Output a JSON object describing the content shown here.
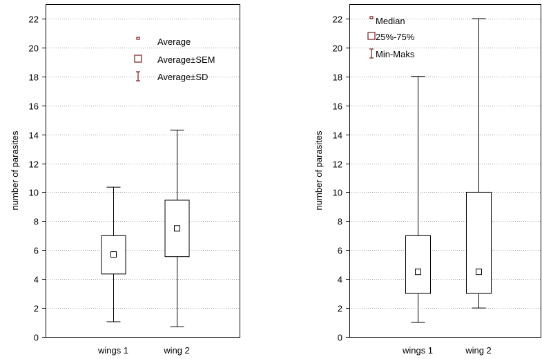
{
  "chart_data": [
    {
      "type": "box",
      "ylabel": "number of parasites",
      "ylim": [
        0,
        23
      ],
      "yticks": [
        0,
        2,
        4,
        6,
        8,
        10,
        12,
        14,
        16,
        18,
        20,
        22
      ],
      "categories": [
        "wings 1",
        "wing 2"
      ],
      "legend": {
        "placement": "top-right",
        "entries": [
          {
            "symbol": "point",
            "label": "Average"
          },
          {
            "symbol": "box",
            "label": "Average±SEM"
          },
          {
            "symbol": "whisker",
            "label": "Average±SD"
          }
        ]
      },
      "boxes": [
        {
          "category": "wings 1",
          "center": 5.7,
          "box_low": 4.35,
          "box_high": 7.0,
          "whisker_low": 1.05,
          "whisker_high": 10.35
        },
        {
          "category": "wing 2",
          "center": 7.5,
          "box_low": 5.55,
          "box_high": 9.45,
          "whisker_low": 0.7,
          "whisker_high": 14.3
        }
      ],
      "grid": "horizontal-dotted"
    },
    {
      "type": "box",
      "ylabel": "number of parasites",
      "ylim": [
        0,
        23
      ],
      "yticks": [
        0,
        2,
        4,
        6,
        8,
        10,
        12,
        14,
        16,
        18,
        20,
        22
      ],
      "categories": [
        "wings 1",
        "wing 2"
      ],
      "legend": {
        "placement": "top-left",
        "entries": [
          {
            "symbol": "point",
            "label": "Median"
          },
          {
            "symbol": "box",
            "label": "25%-75%"
          },
          {
            "symbol": "whisker",
            "label": "Min-Maks"
          }
        ]
      },
      "boxes": [
        {
          "category": "wings 1",
          "center": 4.5,
          "box_low": 3.0,
          "box_high": 7.0,
          "whisker_low": 1.0,
          "whisker_high": 18.0
        },
        {
          "category": "wing 2",
          "center": 4.5,
          "box_low": 3.0,
          "box_high": 10.0,
          "whisker_low": 2.0,
          "whisker_high": 22.0
        }
      ],
      "grid": "horizontal-dotted"
    }
  ]
}
